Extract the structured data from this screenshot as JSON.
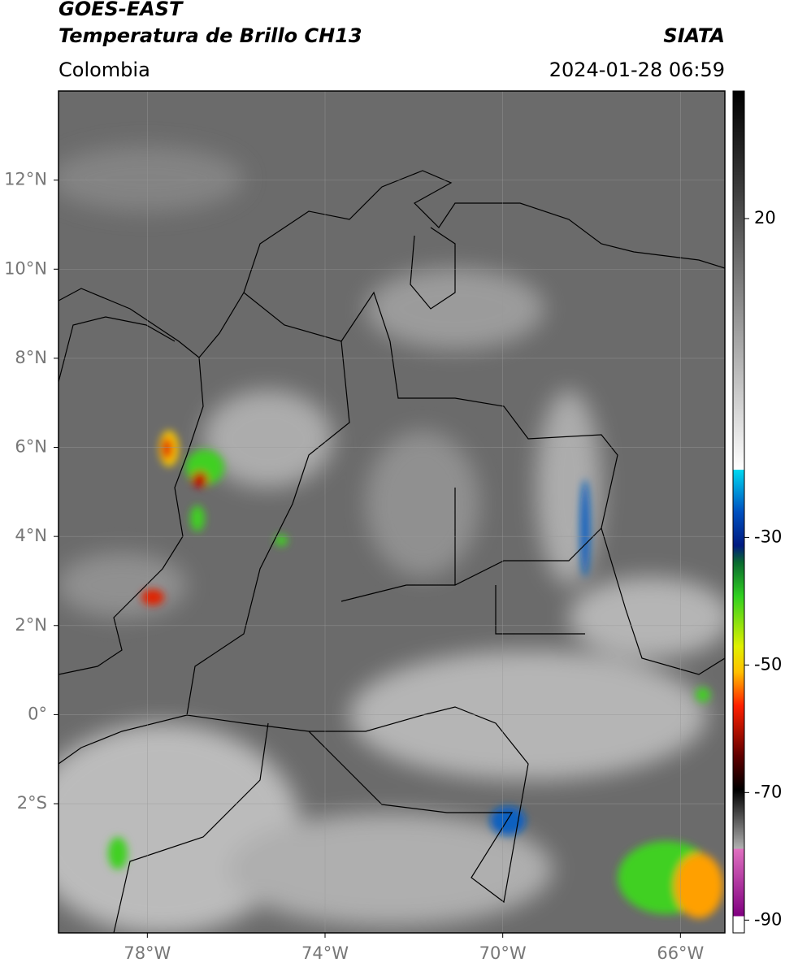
{
  "header": {
    "title_line1": "GOES-EAST",
    "title_line2": "Temperatura de Brillo CH13",
    "region": "Colombia",
    "source": "SIATA",
    "datetime": "2024-01-28 06:59"
  },
  "map": {
    "latlim": [
      -4.9,
      14
    ],
    "lonlim": [
      -80,
      -65
    ],
    "lat_ticks": [
      {
        "value": 12,
        "label": "12°N"
      },
      {
        "value": 10,
        "label": "10°N"
      },
      {
        "value": 8,
        "label": "8°N"
      },
      {
        "value": 6,
        "label": "6°N"
      },
      {
        "value": 4,
        "label": "4°N"
      },
      {
        "value": 2,
        "label": "2°N"
      },
      {
        "value": 0,
        "label": "0°"
      },
      {
        "value": -2,
        "label": "2°S"
      }
    ],
    "lon_ticks": [
      {
        "value": -78,
        "label": "78°W"
      },
      {
        "value": -74,
        "label": "74°W"
      },
      {
        "value": -70,
        "label": "70°W"
      },
      {
        "value": -66,
        "label": "66°W"
      }
    ]
  },
  "colorbar": {
    "lim": [
      -92,
      40
    ],
    "ticks": [
      20,
      -30,
      -50,
      -70,
      -90
    ]
  }
}
